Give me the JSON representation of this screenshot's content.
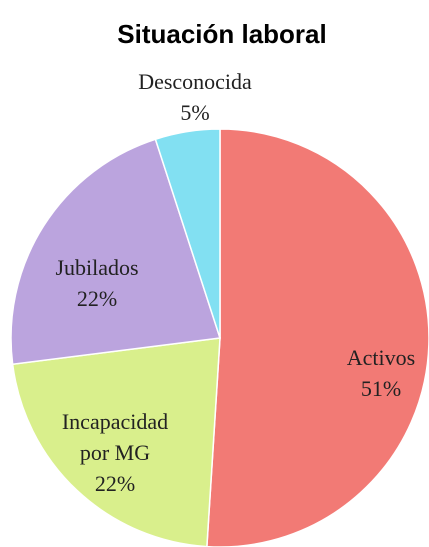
{
  "chart_data": {
    "type": "pie",
    "title": "Situación laboral",
    "categories": [
      "Activos",
      "Incapacidad por MG",
      "Jubilados",
      "Desconocida"
    ],
    "values": [
      51,
      22,
      22,
      5
    ],
    "value_labels": [
      "51%",
      "22%",
      "22%",
      "5%"
    ],
    "colors": [
      "#f27a75",
      "#d9ef8c",
      "#bba4de",
      "#82e0f2"
    ]
  }
}
